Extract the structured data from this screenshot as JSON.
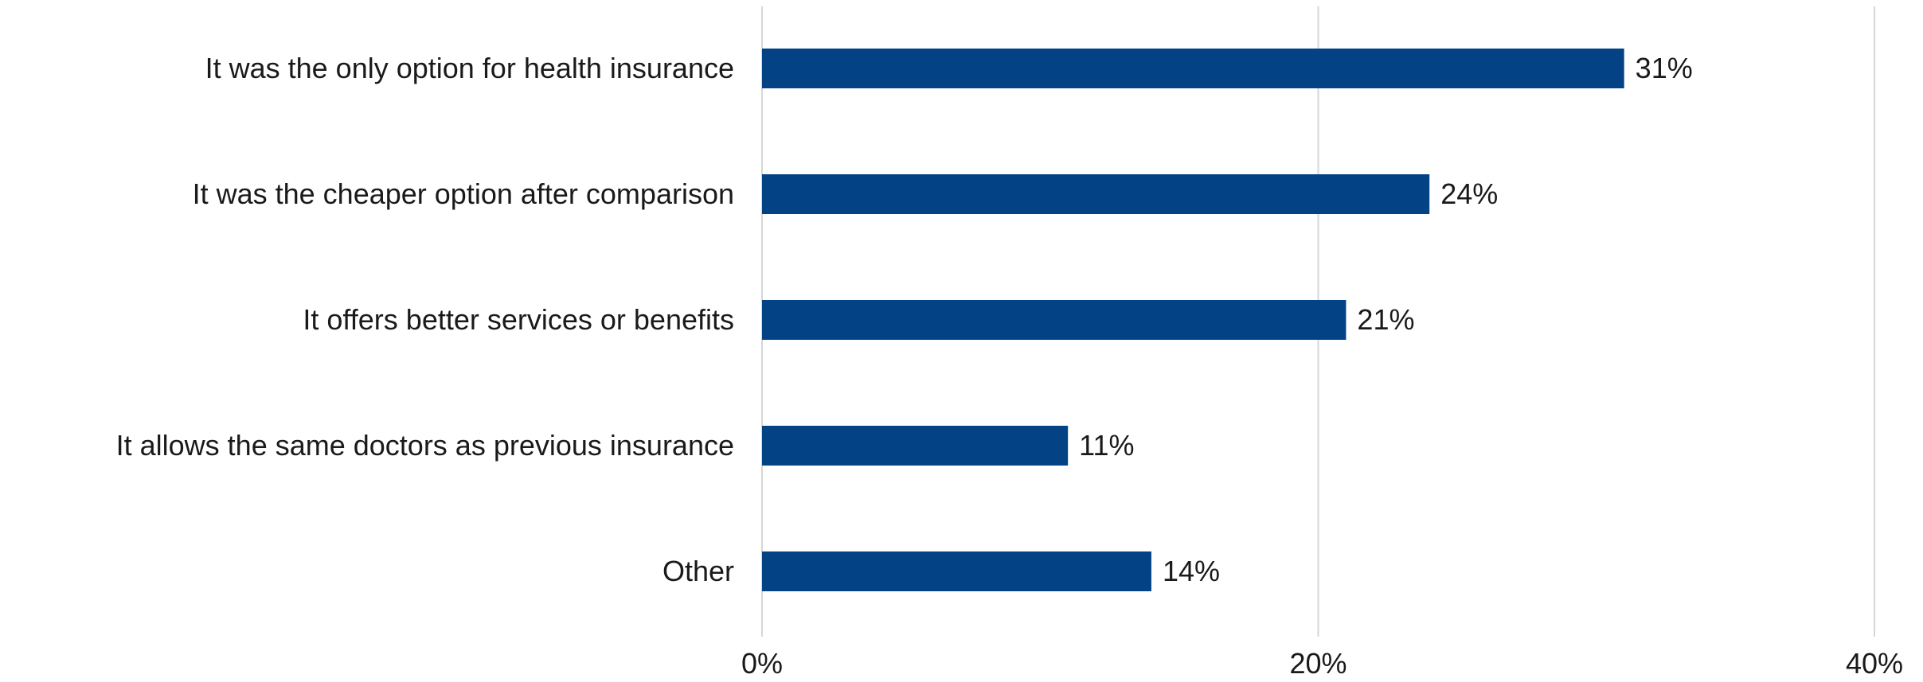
{
  "chart_data": {
    "type": "bar",
    "orientation": "horizontal",
    "categories": [
      "It was the only option for health insurance",
      "It was the cheaper option after comparison",
      "It offers better services or benefits",
      "It allows the same doctors as previous insurance",
      "Other"
    ],
    "values": [
      31,
      24,
      21,
      11,
      14
    ],
    "value_labels": [
      "31%",
      "24%",
      "21%",
      "11%",
      "14%"
    ],
    "xlim": [
      0,
      40
    ],
    "x_ticks": [
      0,
      20,
      40
    ],
    "x_tick_labels": [
      "0%",
      "20%",
      "40%"
    ],
    "title": "",
    "xlabel": "",
    "ylabel": "",
    "grid": "vertical",
    "legend": "none",
    "bar_color": "#034385",
    "gridline_color": "#d6d6d6"
  }
}
